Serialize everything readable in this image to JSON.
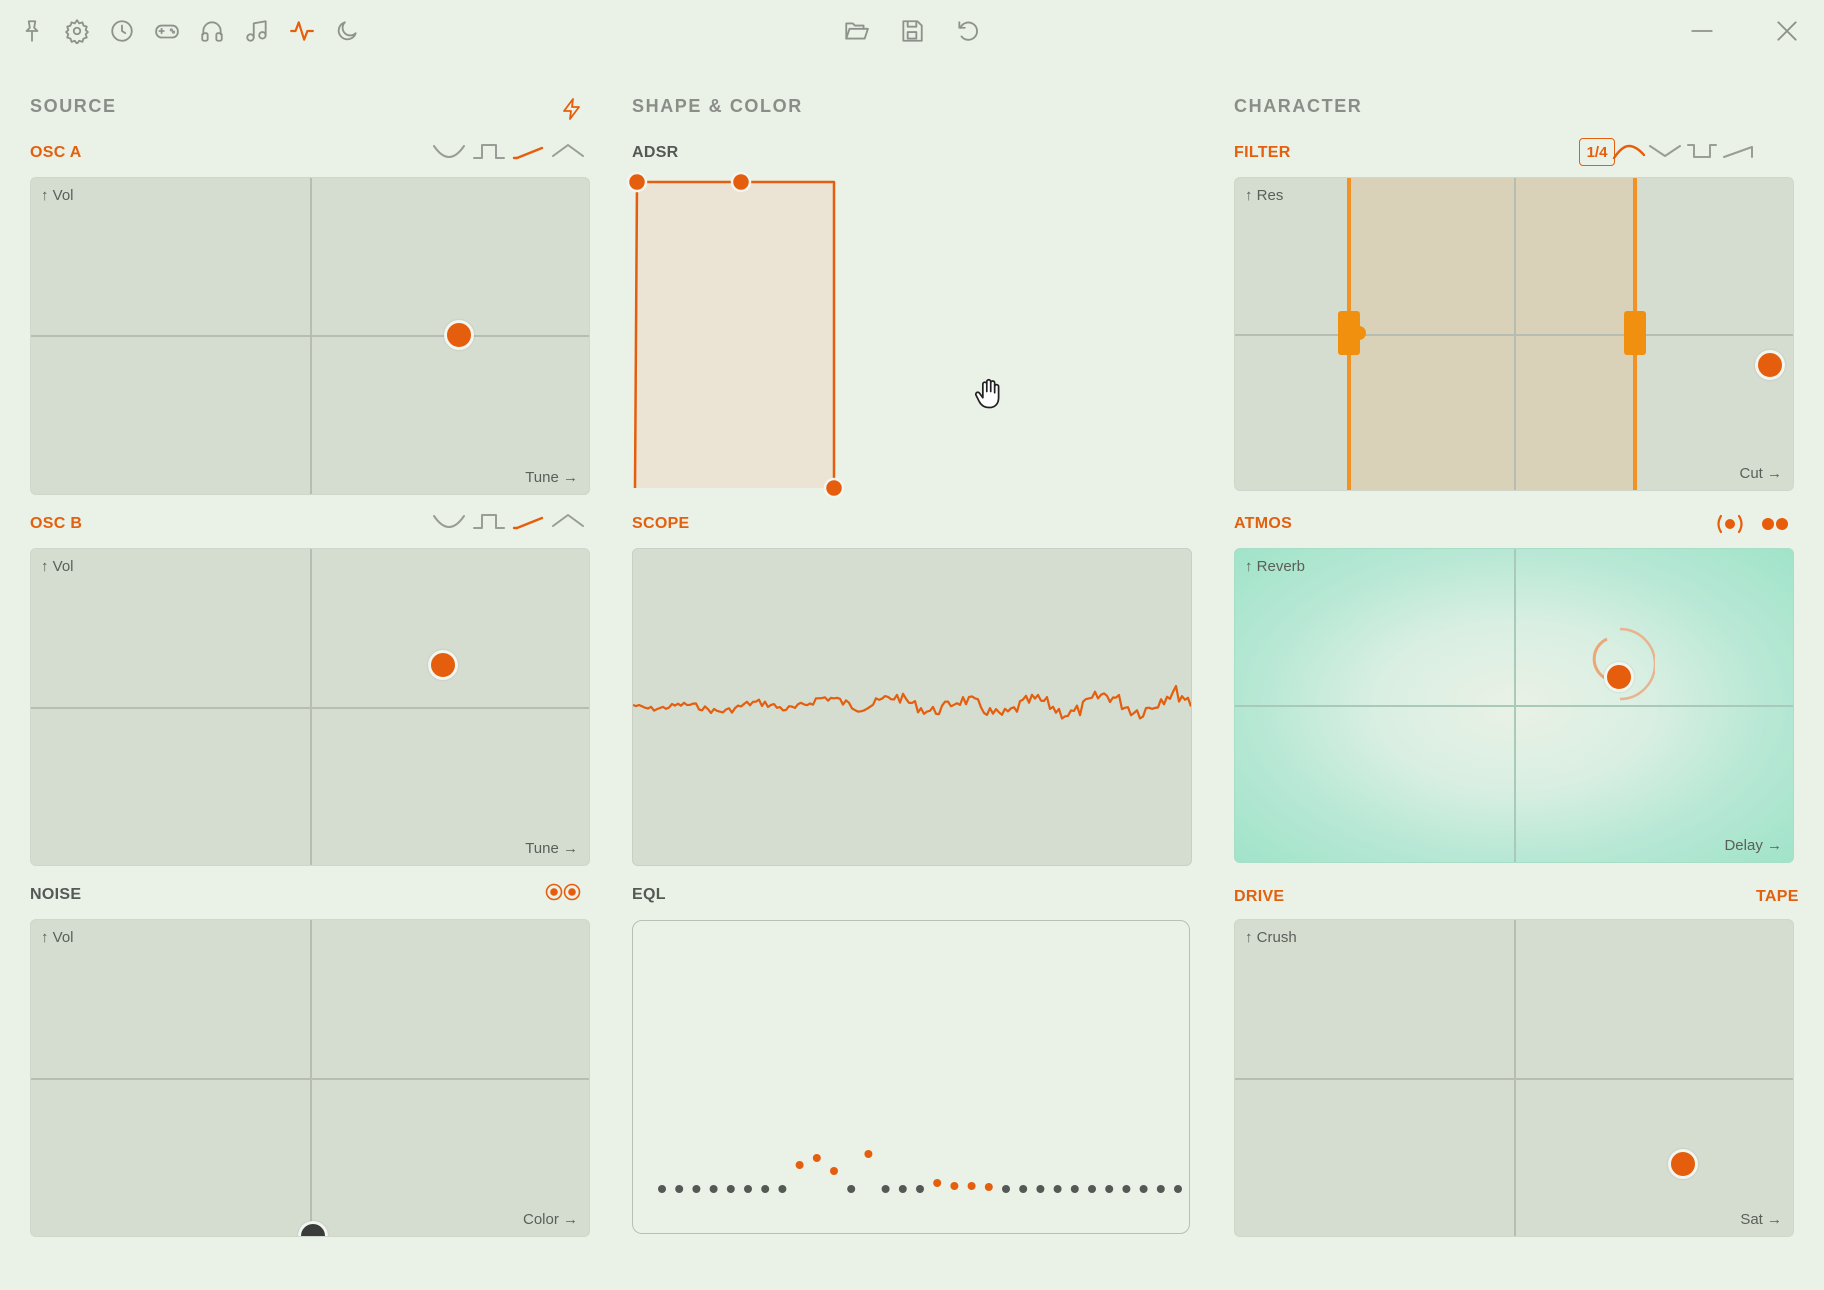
{
  "toolbar": {
    "left_icons": [
      "pin-icon",
      "gear-icon",
      "clock-icon",
      "gamepad-icon",
      "headphones-icon",
      "music-note-icon",
      "waveform-icon",
      "moon-icon"
    ],
    "active_icon": "waveform-icon",
    "center_icons": [
      "folder-open-icon",
      "save-icon",
      "undo-icon"
    ],
    "right_icons": [
      "minimize-icon",
      "close-icon"
    ]
  },
  "sections": {
    "source": "SOURCE",
    "shape_color": "SHAPE & COLOR",
    "character": "CHARACTER"
  },
  "panels": {
    "osc_a": {
      "label": "OSC A",
      "y_axis": "↑ Vol",
      "x_axis": "Tune →",
      "point": {
        "x": 0.76,
        "y": 0.51
      },
      "waveforms": [
        "sine",
        "square",
        "saw",
        "triangle"
      ],
      "active_waveform": "saw"
    },
    "osc_b": {
      "label": "OSC B",
      "y_axis": "↑ Vol",
      "x_axis": "Tune →",
      "point": {
        "x": 0.73,
        "y": 0.36
      },
      "waveforms": [
        "sine",
        "square",
        "saw",
        "triangle"
      ],
      "active_waveform": "saw"
    },
    "noise": {
      "label": "NOISE",
      "y_axis": "↑ Vol",
      "x_axis": "Color →",
      "point": {
        "x": 0.5,
        "y": 1.0
      }
    },
    "adsr": {
      "label": "ADSR"
    },
    "scope": {
      "label": "SCOPE"
    },
    "eql": {
      "label": "EQL",
      "dots": [
        0,
        0,
        0,
        0,
        0,
        0,
        0,
        0,
        1,
        2,
        1,
        0,
        3,
        0,
        0,
        0,
        1,
        1,
        1,
        1,
        0,
        0,
        0,
        0,
        0,
        0,
        0,
        0,
        0,
        0,
        0,
        0
      ]
    },
    "filter": {
      "label": "FILTER",
      "y_axis": "↑ Res",
      "x_axis": "Cut →",
      "rate": "1/4",
      "filter_types": [
        "lowpass",
        "notch",
        "bandpass",
        "highpass"
      ],
      "active_filter": "lowpass",
      "point": {
        "x": 0.96,
        "y": 0.59
      }
    },
    "atmos": {
      "label": "ATMOS",
      "y_axis": "↑ Reverb",
      "x_axis": "Delay →",
      "point": {
        "x": 0.68,
        "y": 0.4
      }
    },
    "drive": {
      "label": "DRIVE",
      "mode": "TAPE",
      "y_axis": "↑ Crush",
      "x_axis": "Sat →",
      "point": {
        "x": 0.8,
        "y": 0.77
      }
    }
  },
  "colors": {
    "accent": "#e45e0d",
    "pad": "#d5ddd1",
    "background": "#eaf1e6",
    "atmos_glow": "#9fe3c9"
  }
}
